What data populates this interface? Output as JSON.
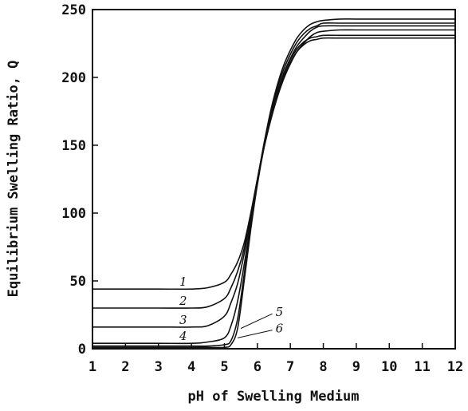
{
  "chart_data": {
    "type": "line",
    "title": "",
    "xlabel": "pH of Swelling Medium",
    "ylabel": "Equilibrium Swelling Ratio, Q",
    "xlim": [
      1,
      12
    ],
    "ylim": [
      0,
      250
    ],
    "x_ticks": [
      1,
      2,
      3,
      4,
      5,
      6,
      7,
      8,
      9,
      10,
      11,
      12
    ],
    "y_ticks": [
      0,
      50,
      100,
      150,
      200,
      250
    ],
    "grid": false,
    "legend": "none",
    "x": [
      1,
      2,
      3,
      4,
      4.5,
      5,
      5.2,
      5.4,
      5.6,
      5.8,
      6,
      6.2,
      6.4,
      6.6,
      6.8,
      7,
      7.2,
      7.4,
      7.6,
      7.8,
      8,
      8.5,
      9,
      10,
      11,
      12
    ],
    "series": [
      {
        "name": "1",
        "values": [
          44,
          44,
          44,
          44,
          45,
          49,
          55,
          64,
          78,
          100,
          125,
          148,
          168,
          185,
          199,
          210,
          219,
          225,
          230,
          233,
          234,
          235,
          235,
          235,
          235,
          235
        ]
      },
      {
        "name": "2",
        "values": [
          30,
          30,
          30,
          30,
          31,
          37,
          45,
          57,
          74,
          98,
          125,
          150,
          171,
          189,
          203,
          214,
          223,
          229,
          234,
          237,
          238,
          238,
          238,
          238,
          238,
          238
        ]
      },
      {
        "name": "3",
        "values": [
          16,
          16,
          16,
          16,
          17,
          24,
          34,
          48,
          70,
          96,
          124,
          151,
          173,
          192,
          206,
          217,
          226,
          232,
          236,
          238,
          240,
          240,
          240,
          240,
          240,
          240
        ]
      },
      {
        "name": "4",
        "values": [
          4,
          4,
          4,
          4,
          5,
          8,
          17,
          35,
          62,
          93,
          123,
          151,
          175,
          194,
          209,
          220,
          229,
          235,
          239,
          241,
          242,
          243,
          243,
          243,
          243,
          243
        ]
      },
      {
        "name": "5",
        "values": [
          2,
          2,
          2,
          2,
          2,
          3,
          6,
          22,
          55,
          90,
          122,
          149,
          171,
          189,
          203,
          213,
          221,
          226,
          229,
          230,
          231,
          231,
          231,
          231,
          231,
          231
        ]
      },
      {
        "name": "6",
        "values": [
          1,
          1,
          1,
          1,
          1,
          1,
          3,
          15,
          50,
          88,
          121,
          148,
          170,
          187,
          201,
          211,
          219,
          224,
          227,
          228,
          229,
          229,
          229,
          229,
          229,
          229
        ]
      }
    ],
    "labels": [
      "1",
      "2",
      "3",
      "4",
      "5",
      "6"
    ]
  },
  "colors": {
    "ink": "#111111",
    "background": "#ffffff"
  }
}
